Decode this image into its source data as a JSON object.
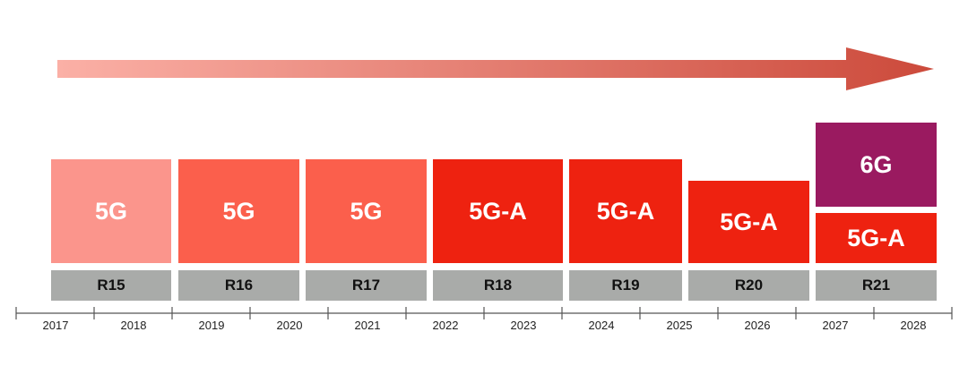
{
  "colors": {
    "arrow_start": "#fbb0a6",
    "arrow_end": "#cc4a3b",
    "gen_5g_light": "#fb958c",
    "gen_5g": "#fb5f4c",
    "gen_5g_a": "#ee2210",
    "gen_6g": "#9a1a60",
    "release_bar": "#a9aba9"
  },
  "generations": [
    {
      "label": "5G",
      "color": "#fb958c"
    },
    {
      "label": "5G",
      "color": "#fb5f4c"
    },
    {
      "label": "5G",
      "color": "#fb5f4c"
    },
    {
      "label": "5G-A",
      "color": "#ee2210"
    },
    {
      "label": "5G-A",
      "color": "#ee2210"
    },
    {
      "label": "5G-A",
      "color": "#ee2210"
    },
    {
      "label": "5G-A",
      "color": "#ee2210"
    },
    {
      "label": "6G",
      "color": "#9a1a60"
    }
  ],
  "releases": [
    "R15",
    "R16",
    "R17",
    "R18",
    "R19",
    "R20",
    "R21"
  ],
  "years": [
    "2017",
    "2018",
    "2019",
    "2020",
    "2021",
    "2022",
    "2023",
    "2024",
    "2025",
    "2026",
    "2027",
    "2028"
  ]
}
